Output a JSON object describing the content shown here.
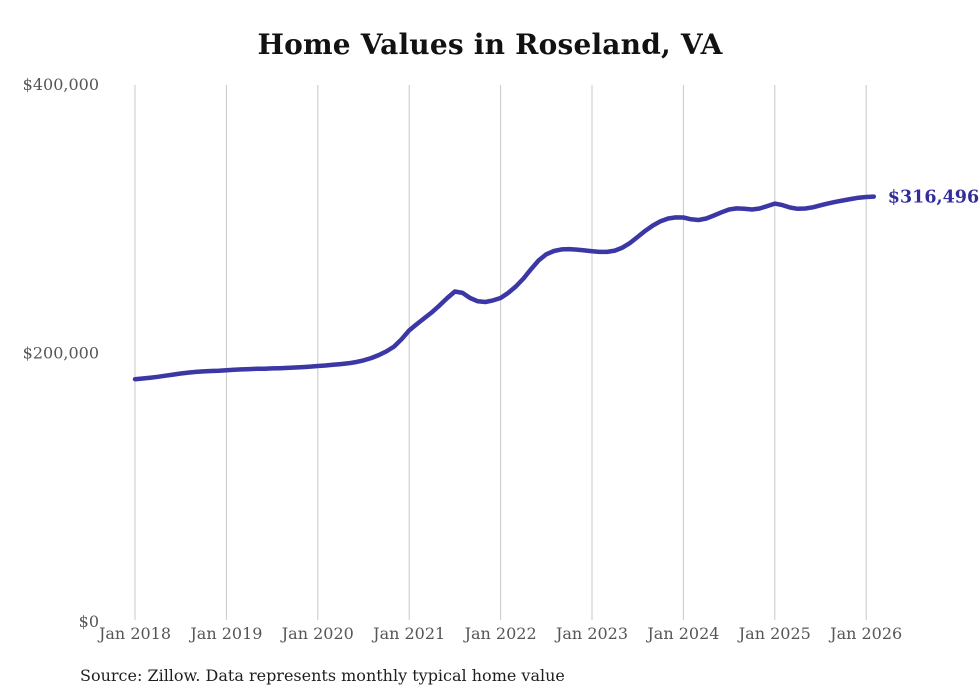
{
  "page": {
    "title": "Home Values in Roseland, VA",
    "source_note": "Source: Zillow. Data represents monthly typical home value"
  },
  "colors": {
    "line": "#3b38a5",
    "end_label": "#312d9b",
    "axis_text": "#565656",
    "grid": "#c8c8c8",
    "title_text": "#121212",
    "source_text": "#1f1f1f",
    "background": "#ffffff"
  },
  "chart_data": {
    "type": "line",
    "title": "Home Values in Roseland, VA",
    "xlabel": "",
    "ylabel": "",
    "x_unit": "month",
    "start_month": "2018-01",
    "end_month": "2026-02",
    "x_tick_labels": [
      "Jan 2018",
      "Jan 2019",
      "Jan 2020",
      "Jan 2021",
      "Jan 2022",
      "Jan 2023",
      "Jan 2024",
      "Jan 2025",
      "Jan 2026"
    ],
    "y_ticks": [
      0,
      200000,
      400000
    ],
    "y_tick_labels": [
      "$0",
      "$200,000",
      "$400,000"
    ],
    "ylim": [
      0,
      400000
    ],
    "grid": "vertical-only",
    "legend": "none",
    "end_annotation": "$316,496",
    "end_value": 316496,
    "series": [
      {
        "name": "Monthly typical home value",
        "values": [
          180500,
          181000,
          181600,
          182300,
          183100,
          183900,
          184700,
          185400,
          185900,
          186300,
          186600,
          186800,
          187200,
          187500,
          187800,
          188000,
          188200,
          188300,
          188500,
          188700,
          188900,
          189200,
          189500,
          189900,
          190300,
          190700,
          191200,
          191700,
          192300,
          193200,
          194500,
          196200,
          198400,
          201200,
          204800,
          210300,
          216800,
          221500,
          226000,
          230500,
          235500,
          241000,
          245800,
          244800,
          241000,
          238500,
          238000,
          239200,
          241000,
          244800,
          249500,
          255500,
          262500,
          269000,
          273500,
          276000,
          277200,
          277400,
          277000,
          276400,
          275800,
          275300,
          275300,
          276300,
          278500,
          282000,
          286500,
          291000,
          295000,
          298200,
          300200,
          301000,
          300900,
          299600,
          299100,
          300200,
          302400,
          304800,
          306900,
          307700,
          307500,
          306900,
          307600,
          309400,
          311300,
          310200,
          308400,
          307400,
          307600,
          308500,
          310000,
          311400,
          312600,
          313700,
          314700,
          315700,
          316200,
          316496
        ]
      }
    ]
  }
}
